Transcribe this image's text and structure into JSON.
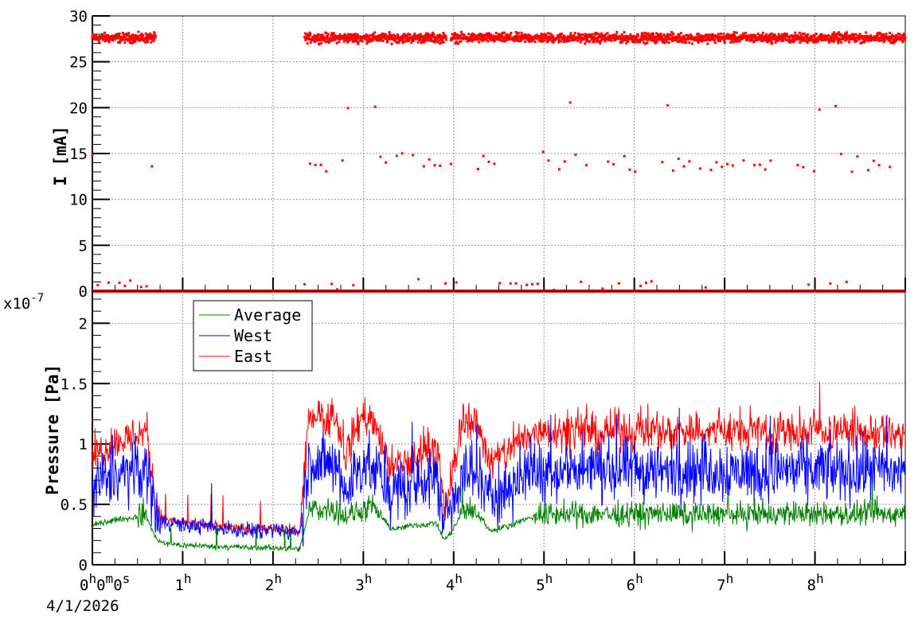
{
  "chart_data": [
    {
      "type": "scatter",
      "ylabel": "I [mA]",
      "ylim": [
        0,
        30
      ],
      "yticks": [
        "0",
        "5",
        "10",
        "15",
        "20",
        "25",
        "30"
      ],
      "xlim_hours": [
        0,
        9
      ],
      "grid": true,
      "color": "#ff0000",
      "beam_on_intervals_hours": [
        [
          0,
          0.7
        ],
        [
          2.35,
          3.92
        ],
        [
          3.97,
          9.0
        ]
      ],
      "levels_mA": {
        "main": 27.6,
        "secondary": 14.0,
        "tertiary": 20.3,
        "low": 0.8,
        "zero": 0
      }
    },
    {
      "type": "line",
      "ylabel": "Pressure [Pa]",
      "y_multiplier": "x10",
      "y_exponent": "-7",
      "ylim": [
        0,
        2.2
      ],
      "yticks": [
        "0",
        "0.5",
        "1",
        "1.5",
        "2"
      ],
      "xlim_hours": [
        0,
        9
      ],
      "x_step_hours": 0.1,
      "grid": true,
      "legend_position": "top-left",
      "series": [
        {
          "name": "Average",
          "color": "#008000",
          "noise": 0.05,
          "values": [
            0.32,
            0.35,
            0.36,
            0.38,
            0.38,
            0.4,
            0.4,
            0.22,
            0.17,
            0.17,
            0.16,
            0.16,
            0.16,
            0.15,
            0.15,
            0.15,
            0.15,
            0.14,
            0.14,
            0.14,
            0.14,
            0.14,
            0.13,
            0.13,
            0.45,
            0.45,
            0.46,
            0.46,
            0.4,
            0.42,
            0.46,
            0.45,
            0.4,
            0.3,
            0.3,
            0.32,
            0.33,
            0.33,
            0.35,
            0.2,
            0.3,
            0.44,
            0.45,
            0.4,
            0.28,
            0.3,
            0.32,
            0.35,
            0.38,
            0.4,
            0.41,
            0.42,
            0.42,
            0.41,
            0.42,
            0.42,
            0.43,
            0.42,
            0.41,
            0.42,
            0.42,
            0.41,
            0.42,
            0.43,
            0.42,
            0.42,
            0.41,
            0.42,
            0.42,
            0.43,
            0.42,
            0.42,
            0.41,
            0.42,
            0.42,
            0.41,
            0.42,
            0.43,
            0.42,
            0.42,
            0.41,
            0.42,
            0.42,
            0.42,
            0.41,
            0.42,
            0.43,
            0.42,
            0.42,
            0.42,
            0.42
          ]
        },
        {
          "name": "West",
          "color": "#0000ff",
          "noise": 0.13,
          "values": [
            0.6,
            0.68,
            0.72,
            0.75,
            0.75,
            0.78,
            0.8,
            0.45,
            0.36,
            0.34,
            0.33,
            0.32,
            0.32,
            0.31,
            0.3,
            0.3,
            0.29,
            0.29,
            0.29,
            0.28,
            0.28,
            0.28,
            0.28,
            0.27,
            0.85,
            0.85,
            0.82,
            0.8,
            0.6,
            0.75,
            0.85,
            0.8,
            0.7,
            0.6,
            0.62,
            0.65,
            0.68,
            0.7,
            0.72,
            0.38,
            0.55,
            0.78,
            0.75,
            0.7,
            0.55,
            0.6,
            0.65,
            0.7,
            0.75,
            0.78,
            0.78,
            0.8,
            0.78,
            0.77,
            0.78,
            0.8,
            0.78,
            0.78,
            0.77,
            0.78,
            0.79,
            0.78,
            0.78,
            0.77,
            0.78,
            0.8,
            0.78,
            0.78,
            0.77,
            0.78,
            0.79,
            0.78,
            0.78,
            0.78,
            0.77,
            0.78,
            0.8,
            0.78,
            0.78,
            0.77,
            0.78,
            0.79,
            0.78,
            0.78,
            0.77,
            0.78,
            0.78,
            0.77,
            0.76,
            0.78,
            0.78
          ]
        },
        {
          "name": "East",
          "color": "#ff0000",
          "noise": 0.08,
          "values": [
            0.9,
            0.95,
            1.0,
            1.02,
            1.05,
            1.08,
            1.12,
            0.5,
            0.38,
            0.36,
            0.35,
            0.34,
            0.33,
            0.32,
            0.32,
            0.31,
            0.3,
            0.3,
            0.3,
            0.29,
            0.29,
            0.29,
            0.28,
            0.28,
            1.25,
            1.25,
            1.22,
            1.2,
            0.9,
            1.1,
            1.25,
            1.2,
            1.0,
            0.8,
            0.82,
            0.85,
            0.88,
            0.95,
            1.0,
            0.45,
            0.8,
            1.22,
            1.2,
            1.1,
            0.85,
            0.88,
            0.95,
            1.0,
            1.05,
            1.1,
            1.12,
            1.13,
            1.1,
            1.1,
            1.12,
            1.1,
            1.08,
            1.1,
            1.12,
            1.1,
            1.1,
            1.12,
            1.13,
            1.1,
            1.1,
            1.1,
            1.12,
            1.12,
            1.1,
            1.1,
            1.12,
            1.1,
            1.1,
            1.12,
            1.1,
            1.1,
            1.12,
            1.1,
            1.08,
            1.1,
            1.12,
            1.13,
            1.1,
            1.1,
            1.1,
            1.1,
            1.08,
            1.1,
            1.08,
            1.08,
            1.08
          ]
        }
      ]
    }
  ],
  "xaxis": {
    "ticks": [
      {
        "base": "0",
        "sup": "h"
      },
      {
        "base": "1",
        "sup": "h"
      },
      {
        "base": "2",
        "sup": "h"
      },
      {
        "base": "3",
        "sup": "h"
      },
      {
        "base": "4",
        "sup": "h"
      },
      {
        "base": "5",
        "sup": "h"
      },
      {
        "base": "6",
        "sup": "h"
      },
      {
        "base": "7",
        "sup": "h"
      },
      {
        "base": "8",
        "sup": "h"
      }
    ],
    "origin_label": {
      "h": "0",
      "m": "0",
      "s": "0",
      "h_unit": "h",
      "m_unit": "m",
      "s_unit": "s"
    },
    "date": "4/1/2026"
  }
}
